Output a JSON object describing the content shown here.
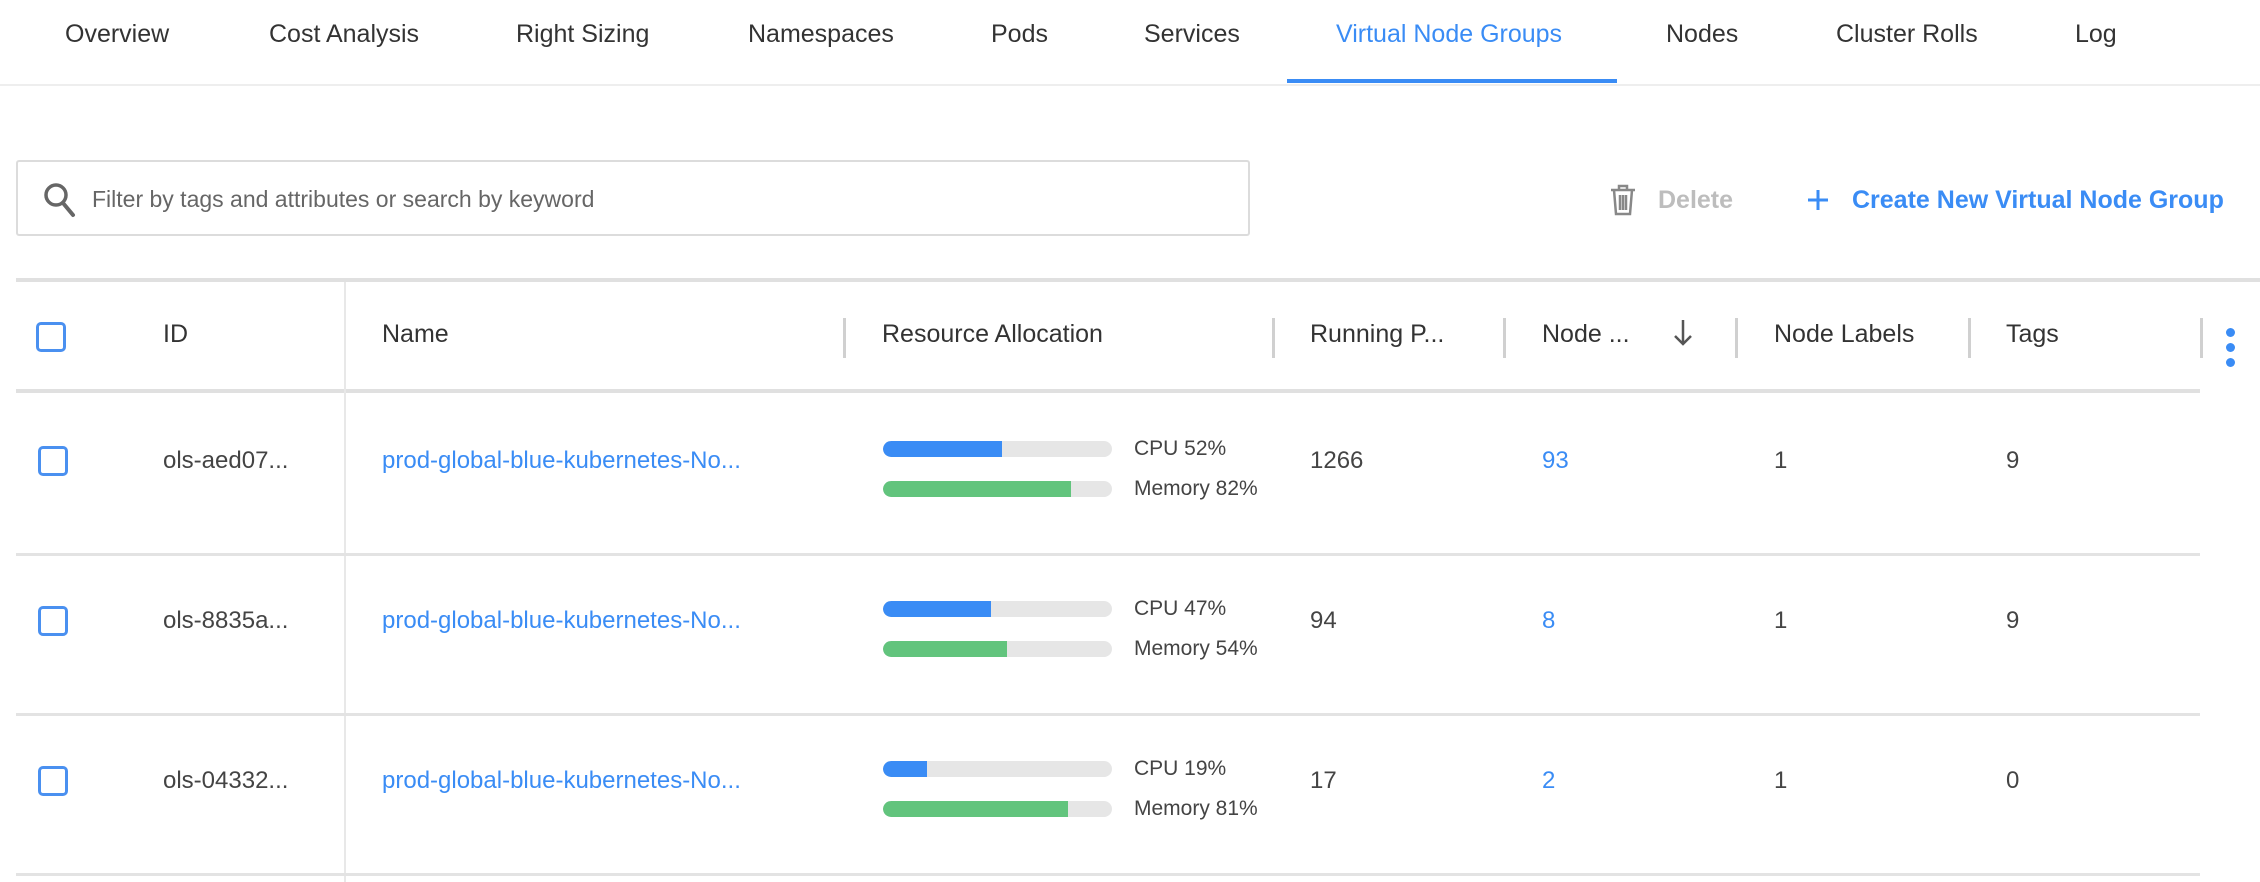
{
  "tabs": [
    {
      "label": "Overview",
      "active": false
    },
    {
      "label": "Cost Analysis",
      "active": false
    },
    {
      "label": "Right Sizing",
      "active": false
    },
    {
      "label": "Namespaces",
      "active": false
    },
    {
      "label": "Pods",
      "active": false
    },
    {
      "label": "Services",
      "active": false
    },
    {
      "label": "Virtual Node Groups",
      "active": true
    },
    {
      "label": "Nodes",
      "active": false
    },
    {
      "label": "Cluster Rolls",
      "active": false
    },
    {
      "label": "Log",
      "active": false
    }
  ],
  "search": {
    "placeholder": "Filter by tags and attributes or search by keyword",
    "value": ""
  },
  "toolbar": {
    "delete_label": "Delete",
    "create_label": "Create New Virtual Node Group"
  },
  "table": {
    "columns": {
      "id": "ID",
      "name": "Name",
      "resource": "Resource Allocation",
      "running": "Running P...",
      "nodes": "Node ...",
      "labels": "Node Labels",
      "tags": "Tags"
    },
    "sort": {
      "column": "nodes",
      "direction": "descending"
    },
    "rows": [
      {
        "id": "ols-aed07...",
        "name": "prod-global-blue-kubernetes-No...",
        "cpu": 52,
        "cpu_label": "CPU 52%",
        "memory": 82,
        "memory_label": "Memory 82%",
        "running": "1266",
        "nodes": "93",
        "labels": "1",
        "tags": "9"
      },
      {
        "id": "ols-8835a...",
        "name": "prod-global-blue-kubernetes-No...",
        "cpu": 47,
        "cpu_label": "CPU 47%",
        "memory": 54,
        "memory_label": "Memory 54%",
        "running": "94",
        "nodes": "8",
        "labels": "1",
        "tags": "9"
      },
      {
        "id": "ols-04332...",
        "name": "prod-global-blue-kubernetes-No...",
        "cpu": 19,
        "cpu_label": "CPU 19%",
        "memory": 81,
        "memory_label": "Memory 81%",
        "running": "17",
        "nodes": "2",
        "labels": "1",
        "tags": "0"
      }
    ]
  },
  "colors": {
    "accent": "#3a8cf5",
    "cpu_bar": "#3a8cf5",
    "memory_bar": "#62c47d",
    "bar_track": "#e6e6e6",
    "disabled": "#bdbdbd"
  }
}
